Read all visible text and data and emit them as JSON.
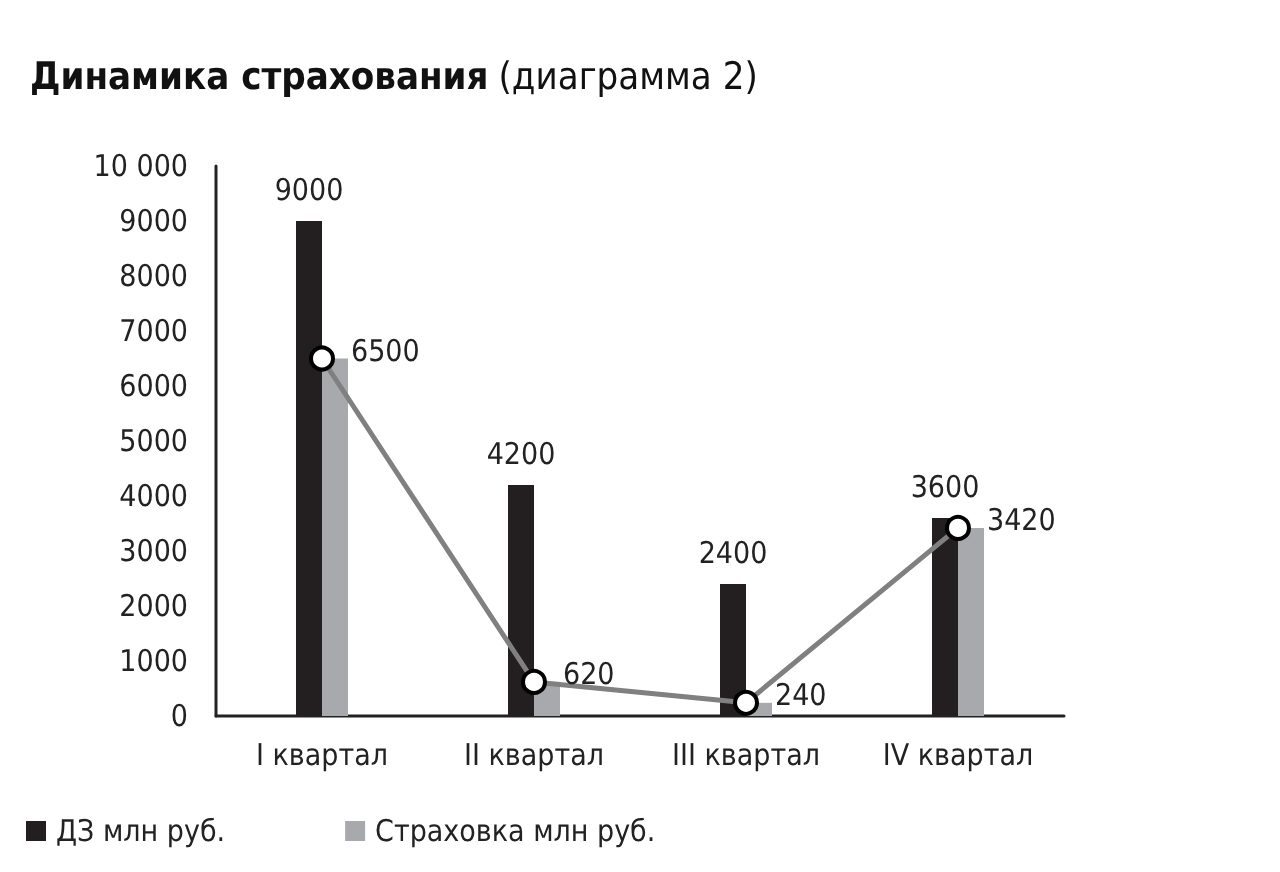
{
  "chart_data": {
    "type": "bar",
    "title": "Динамика страхования",
    "subtitle": "(диаграмма 2)",
    "categories": [
      "I квартал",
      "II квартал",
      "III квартал",
      "IV квартал"
    ],
    "series": [
      {
        "name": "ДЗ млн руб.",
        "color": "#231f20",
        "values": [
          9000,
          4200,
          2400,
          3600
        ],
        "value_labels": [
          "9000",
          "4200",
          "2400",
          "3600"
        ]
      },
      {
        "name": "Страховка млн руб.",
        "color": "#a7a9ac",
        "values": [
          6500,
          620,
          240,
          3420
        ]
      },
      {
        "type": "line",
        "color": "#808080",
        "values": [
          6500,
          620,
          240,
          3420
        ],
        "value_labels": [
          "6500",
          "620",
          "240",
          "3420"
        ]
      }
    ],
    "ylim": [
      0,
      10000
    ],
    "yticks": [
      0,
      1000,
      2000,
      3000,
      4000,
      5000,
      6000,
      7000,
      8000,
      9000,
      {
        "value": 10000,
        "label": "10 000"
      }
    ],
    "grid": false,
    "legend": "bottom left",
    "marker": "circle",
    "line_style": "solid"
  }
}
